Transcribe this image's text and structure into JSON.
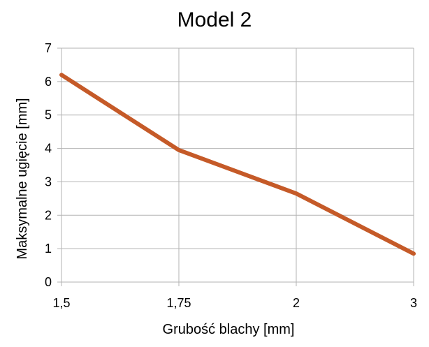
{
  "chart_data": {
    "type": "line",
    "title": "Model 2",
    "xlabel": "Grubość blachy [mm]",
    "ylabel": "Maksymalne ugięcie [mm]",
    "categories": [
      "1,5",
      "1,75",
      "2",
      "3"
    ],
    "series": [
      {
        "color": "#c55a28",
        "values": [
          6.2,
          3.95,
          2.65,
          0.85
        ]
      }
    ],
    "ylim": [
      0,
      7
    ],
    "yticks": [
      0,
      1,
      2,
      3,
      4,
      5,
      6,
      7
    ],
    "grid": true,
    "legend": "none"
  }
}
